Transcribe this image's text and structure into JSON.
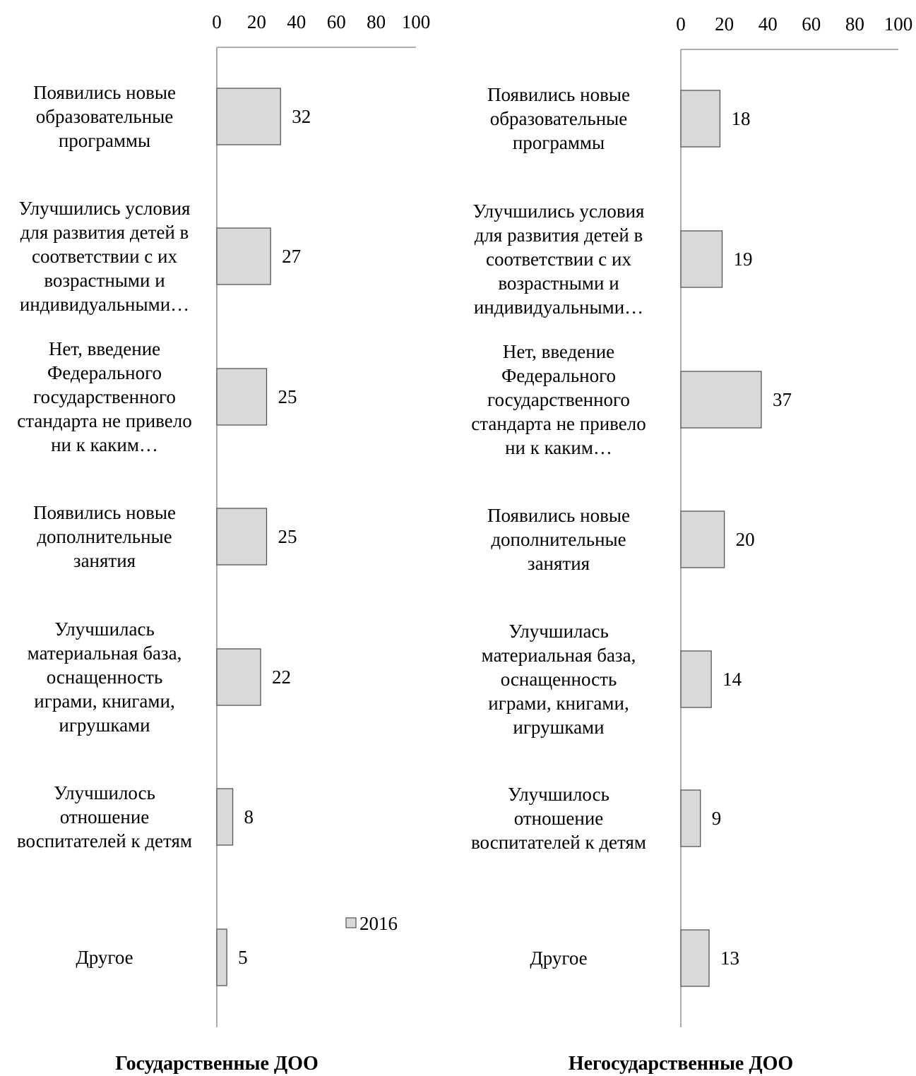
{
  "chart_data": [
    {
      "type": "bar",
      "orientation": "horizontal",
      "title": "Государственные ДОО",
      "categories": [
        [
          "Появились новые",
          "образовательные",
          "программы"
        ],
        [
          "Улучшились условия",
          "для развития детей в",
          "соответствии с их",
          "возрастными и",
          "индивидуальными…"
        ],
        [
          "Нет, введение",
          "Федерального",
          "государственного",
          "стандарта не привело",
          "ни к каким…"
        ],
        [
          "Появились новые",
          "дополнительные",
          "занятия"
        ],
        [
          "Улучшилась",
          "материальная база,",
          "оснащенность",
          "играми, книгами,",
          "игрушками"
        ],
        [
          "Улучшилось",
          "отношение",
          "воспитателей к детям"
        ],
        [
          "Другое"
        ]
      ],
      "series": [
        {
          "name": "2016",
          "values": [
            32,
            27,
            25,
            25,
            22,
            8,
            5
          ]
        }
      ],
      "xlim": [
        0,
        100
      ],
      "ticks": [
        "0",
        "20",
        "40",
        "60",
        "80",
        "100"
      ],
      "axis_position": "top",
      "grid": false,
      "legend_position": "bottom-right"
    },
    {
      "type": "bar",
      "orientation": "horizontal",
      "title": "Негосударственные ДОО",
      "categories": [
        [
          "Появились новые",
          "образовательные",
          "программы"
        ],
        [
          "Улучшились условия",
          "для развития детей в",
          "соответствии с их",
          "возрастными и",
          "индивидуальными…"
        ],
        [
          "Нет, введение",
          "Федерального",
          "государственного",
          "стандарта не привело",
          "ни к каким…"
        ],
        [
          "Появились новые",
          "дополнительные",
          "занятия"
        ],
        [
          "Улучшилась",
          "материальная база,",
          "оснащенность",
          "играми, книгами,",
          "игрушками"
        ],
        [
          "Улучшилось",
          "отношение",
          "воспитателей к детям"
        ],
        [
          "Другое"
        ]
      ],
      "series": [
        {
          "values": [
            18,
            19,
            37,
            20,
            14,
            9,
            13
          ]
        }
      ],
      "xlim": [
        0,
        100
      ],
      "ticks": [
        "0",
        "20",
        "40",
        "60",
        "80",
        "100"
      ],
      "axis_position": "top",
      "grid": false
    }
  ],
  "colors": {
    "bar_fill": "#d9d9d9",
    "bar_stroke": "#555555",
    "axis": "#808080"
  }
}
